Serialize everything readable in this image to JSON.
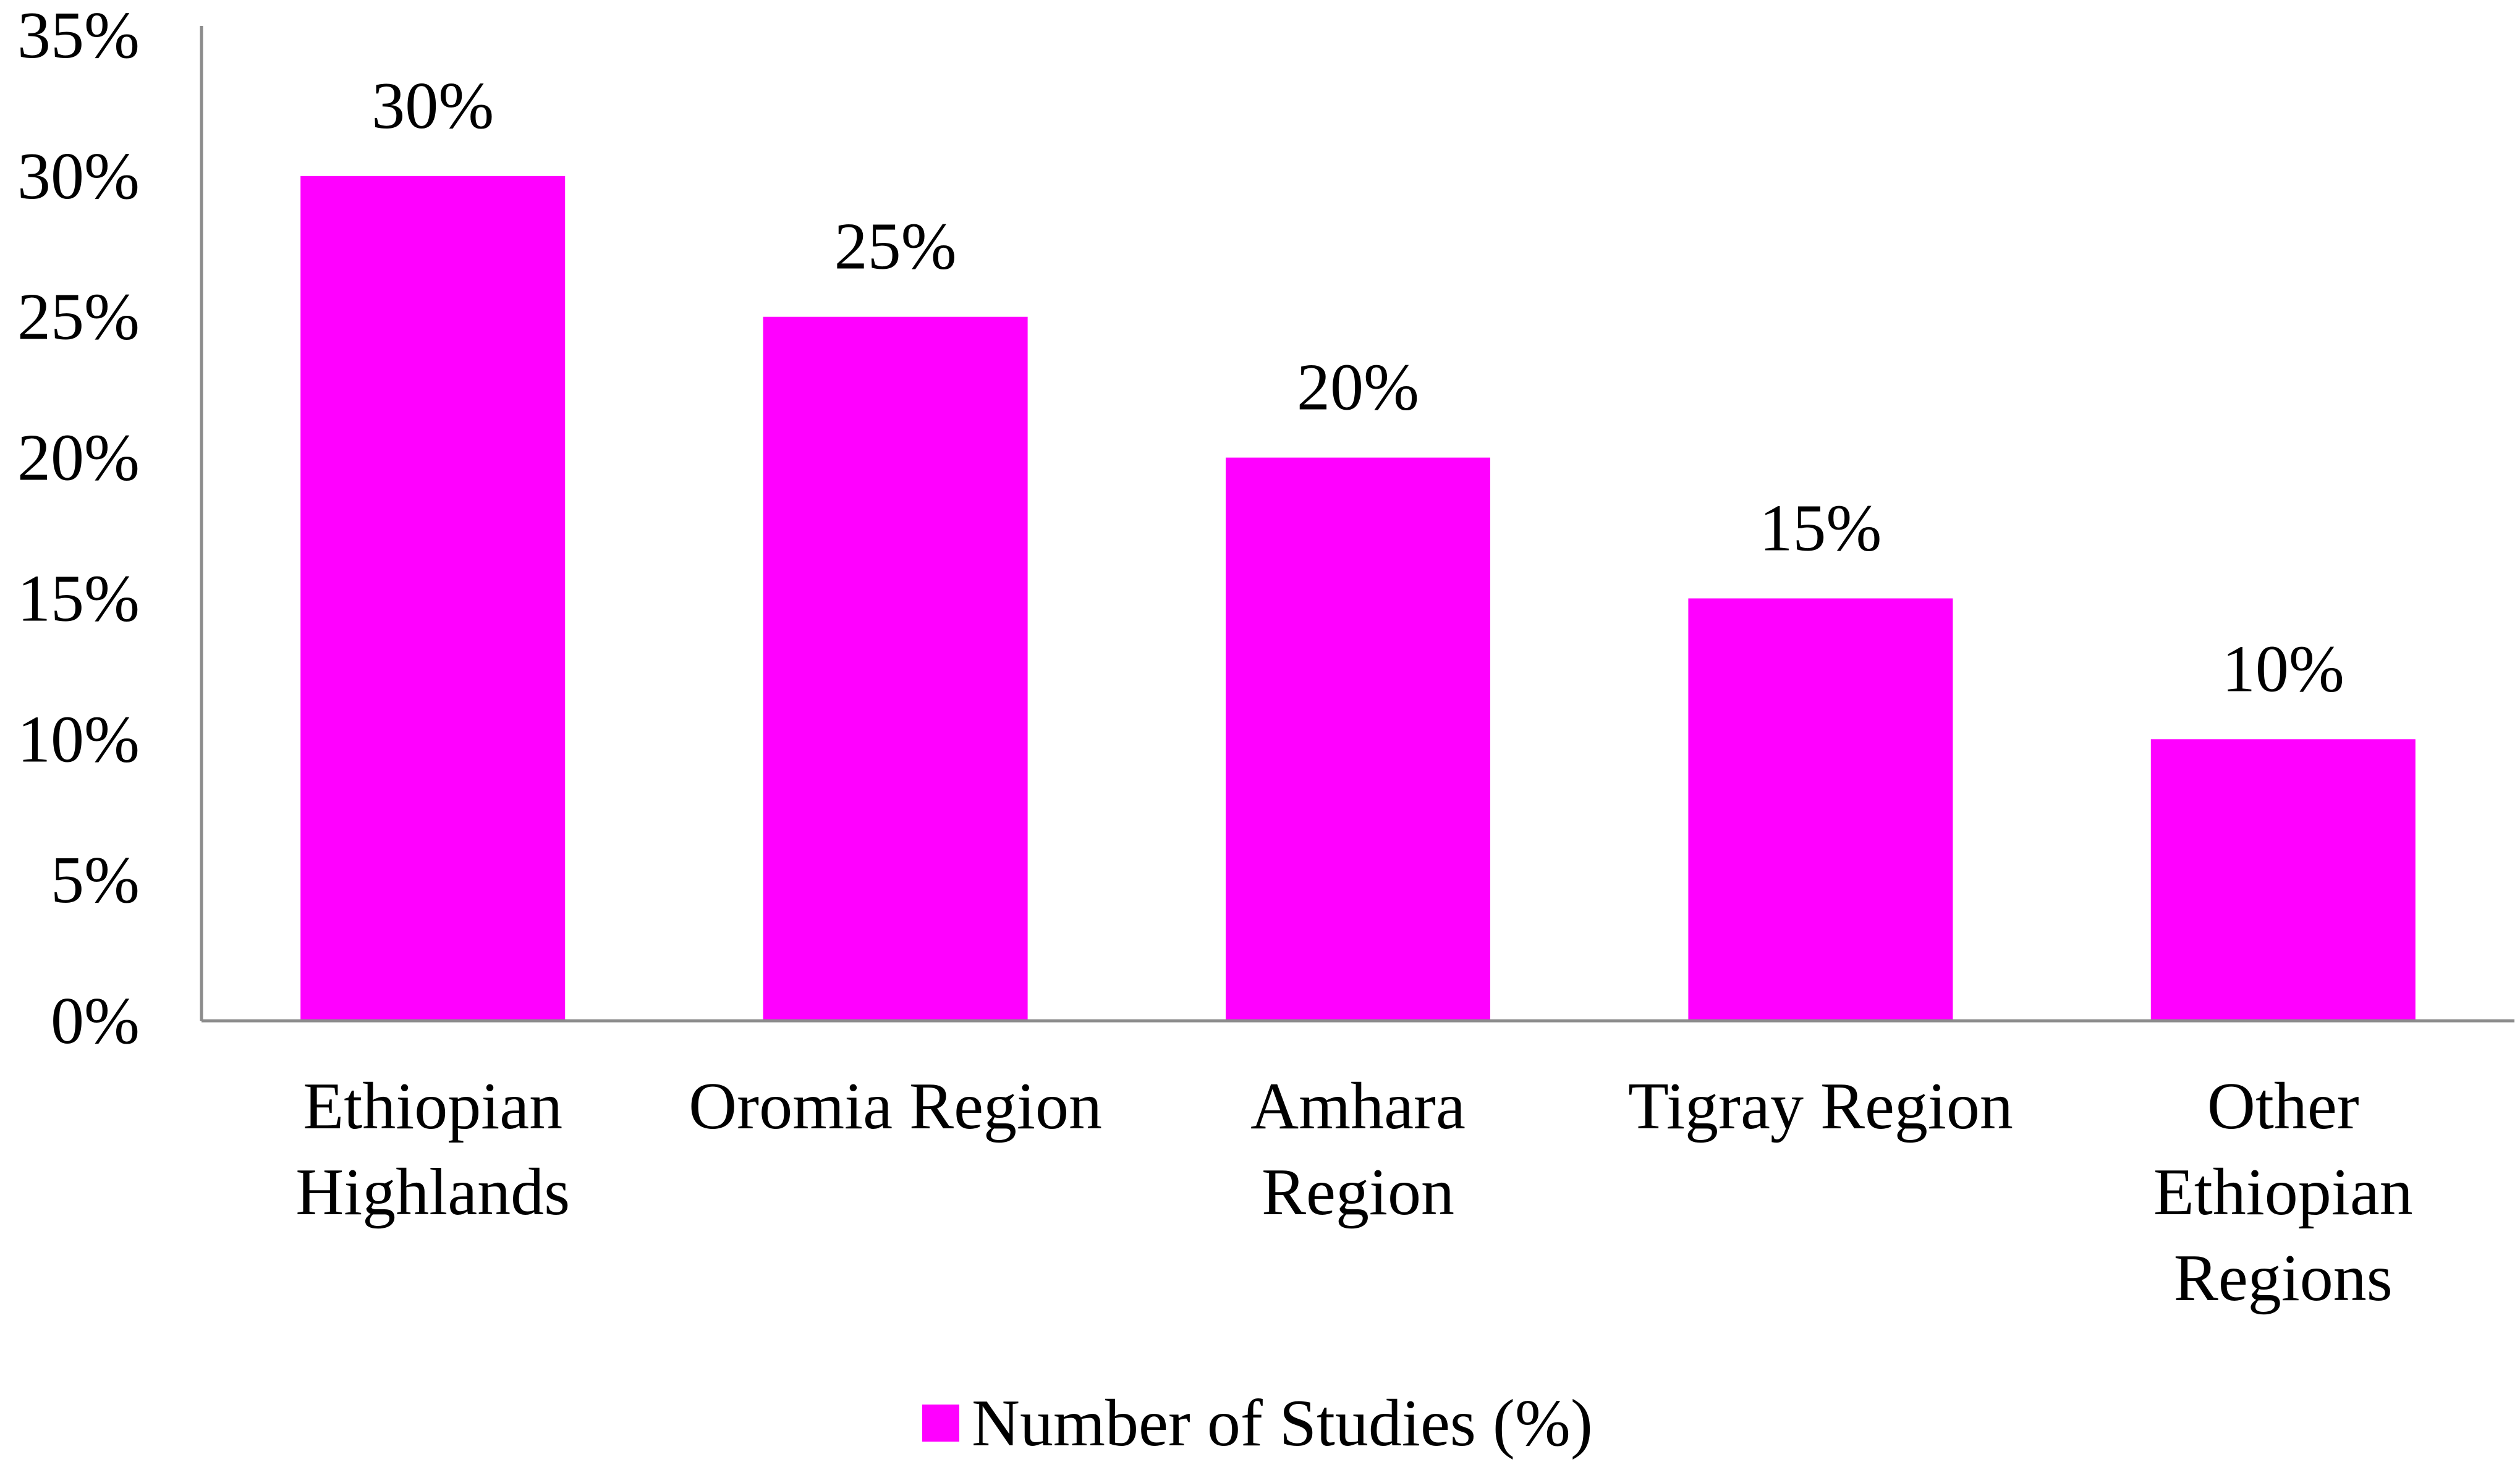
{
  "chart_data": {
    "type": "bar",
    "title": "",
    "xlabel": "",
    "ylabel": "",
    "categories": [
      [
        "Ethiopian",
        "Highlands"
      ],
      [
        "Oromia Region"
      ],
      [
        "Amhara",
        "Region"
      ],
      [
        "Tigray Region"
      ],
      [
        "Other",
        "Ethiopian",
        "Regions"
      ]
    ],
    "series": [
      {
        "name": "Number of Studies (%)",
        "color": "#ff00ff",
        "values": [
          30,
          25,
          20,
          15,
          10
        ],
        "data_labels": [
          "30%",
          "25%",
          "20%",
          "15%",
          "10%"
        ]
      }
    ],
    "ylim": [
      0,
      35
    ],
    "yticks": [
      0,
      5,
      10,
      15,
      20,
      25,
      30,
      35
    ],
    "ytick_labels": [
      "0%",
      "5%",
      "10%",
      "15%",
      "20%",
      "25%",
      "30%",
      "35%"
    ],
    "grid": false,
    "legend": "bottom-center",
    "axis_color": "#8c8c8c"
  }
}
